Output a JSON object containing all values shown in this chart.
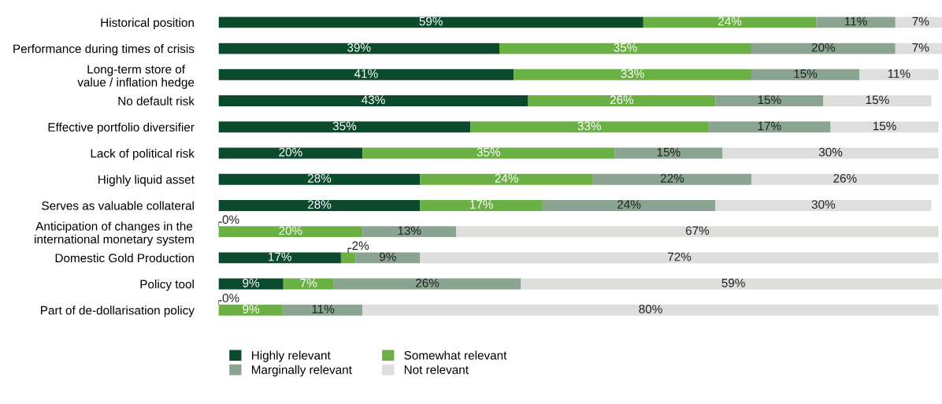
{
  "chart_data": {
    "type": "bar",
    "orientation": "horizontal",
    "stacked": true,
    "legend": "bottom left",
    "tick_labels": "y",
    "grid": false,
    "annotations": [
      {
        "text": "0%",
        "x": 0,
        "y": "Anticipation of changes in the\ninternational monetary system"
      },
      {
        "text": "0%",
        "x": 0,
        "y": "Part of de-dollarisation policy"
      }
    ],
    "categories": [
      "Historical position",
      "Performance during times of crisis",
      "Long-term store of\nvalue / inflation hedge",
      "No default risk",
      "Effective portfolio diversifier",
      "Lack of political risk",
      "Highly liquid asset",
      "Serves as valuable collateral",
      "Anticipation of changes in the\ninternational monetary system",
      "Domestic Gold Production",
      "Policy tool",
      "Part of de-dollarisation policy"
    ],
    "series": [
      {
        "name": "Highly relevant",
        "color": "#0b4a2d",
        "values": [
          59,
          39,
          41,
          43,
          35,
          20,
          28,
          28,
          0,
          17,
          9,
          0
        ],
        "value_labels": [
          "59%",
          "39%",
          "41%",
          "43%",
          "35%",
          "20%",
          "28%",
          "28%",
          null,
          "17%",
          "9%",
          null
        ]
      },
      {
        "name": "Somewhat relevant",
        "color": "#6bb044",
        "values": [
          24,
          35,
          33,
          26,
          33,
          35,
          24,
          17,
          20,
          2,
          7,
          9
        ],
        "value_labels": [
          "24%",
          "35%",
          "33%",
          "26%",
          "33%",
          "35%",
          "24%",
          "17%",
          "20%",
          "2%",
          "7%",
          "9%"
        ]
      },
      {
        "name": "Marginally relevant",
        "color": "#8aa491",
        "values": [
          11,
          20,
          15,
          15,
          17,
          15,
          22,
          24,
          13,
          9,
          26,
          11
        ],
        "value_labels": [
          "11%",
          "20%",
          "15%",
          "15%",
          "17%",
          "15%",
          "22%",
          "24%",
          "13%",
          "9%",
          "26%",
          "11%"
        ]
      },
      {
        "name": "Not relevant",
        "color": "#dededd",
        "values": [
          7,
          7,
          11,
          15,
          15,
          30,
          26,
          30,
          67,
          72,
          59,
          80
        ],
        "value_labels": [
          "7%",
          "7%",
          "11%",
          "15%",
          "15%",
          "30%",
          "26%",
          "30%",
          "67%",
          "72%",
          "59%",
          "80%"
        ]
      }
    ]
  }
}
